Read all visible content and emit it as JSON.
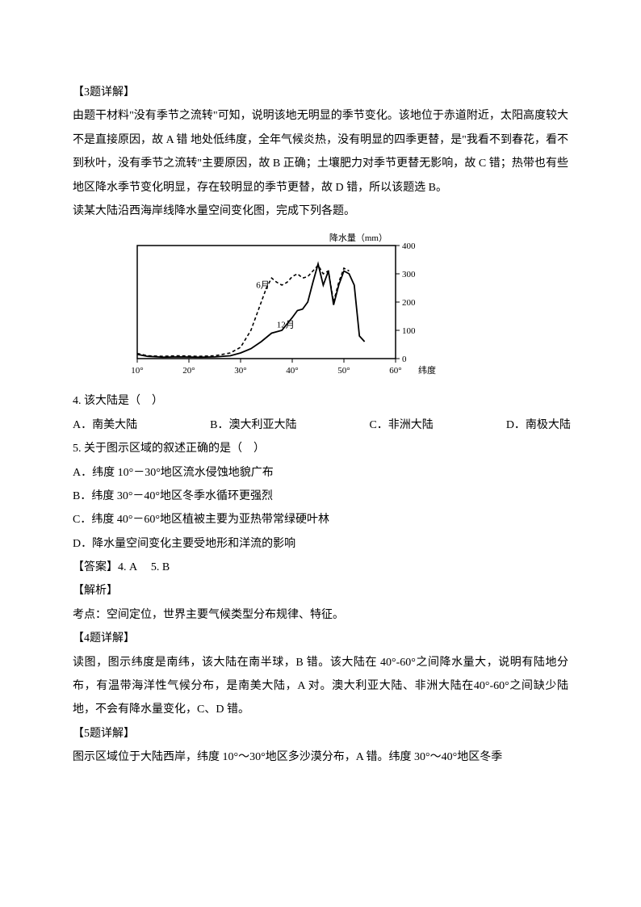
{
  "q3": {
    "heading": "【3题详解】",
    "body": "由题干材料\"没有季节之流转\"可知，说明该地无明显的季节变化。该地位于赤道附近，太阳高度较大不是直接原因，故 A 错  地处低纬度，全年气候炎热，没有明显的四季更替，是\"我看不到春花，看不到秋叶，没有季节之流转\"主要原因，故 B 正确；土壤肥力对季节更替无影响，故 C 错；热带也有些地区降水季节变化明显，存在较明显的季节更替，故 D 错，所以该题选 B。",
    "prompt": "读某大陆沿西海岸线降水量空间变化图，完成下列各题。"
  },
  "chart": {
    "title": "降水量（mm）",
    "xlabel": "纬度",
    "x_ticks": [
      "10°",
      "20°",
      "30°",
      "40°",
      "50°",
      "60°"
    ],
    "y_ticks": [
      "0",
      "100",
      "200",
      "300",
      "400"
    ],
    "ylim": [
      0,
      400
    ],
    "xlim": [
      10,
      60
    ],
    "line_color": "#000000",
    "dash_color": "#000000",
    "background_color": "#ffffff",
    "label_fontsize": 11,
    "series_labels": {
      "dashed": "6月",
      "solid": "12月"
    },
    "series_dashed": [
      [
        10,
        18
      ],
      [
        12,
        10
      ],
      [
        15,
        8
      ],
      [
        18,
        10
      ],
      [
        22,
        8
      ],
      [
        25,
        10
      ],
      [
        28,
        20
      ],
      [
        30,
        40
      ],
      [
        32,
        100
      ],
      [
        34,
        200
      ],
      [
        35,
        250
      ],
      [
        36,
        285
      ],
      [
        37,
        270
      ],
      [
        38,
        260
      ],
      [
        39,
        270
      ],
      [
        40,
        290
      ],
      [
        41,
        300
      ],
      [
        42,
        285
      ],
      [
        43,
        290
      ],
      [
        45,
        330
      ],
      [
        46,
        300
      ],
      [
        47,
        310
      ],
      [
        48,
        200
      ],
      [
        49,
        270
      ],
      [
        50,
        320
      ],
      [
        51,
        310
      ]
    ],
    "series_solid": [
      [
        10,
        15
      ],
      [
        12,
        8
      ],
      [
        15,
        5
      ],
      [
        18,
        6
      ],
      [
        22,
        5
      ],
      [
        25,
        6
      ],
      [
        28,
        10
      ],
      [
        30,
        20
      ],
      [
        32,
        35
      ],
      [
        34,
        60
      ],
      [
        36,
        90
      ],
      [
        38,
        100
      ],
      [
        40,
        145
      ],
      [
        41,
        170
      ],
      [
        42,
        175
      ],
      [
        43,
        200
      ],
      [
        44,
        270
      ],
      [
        45,
        335
      ],
      [
        46,
        260
      ],
      [
        47,
        310
      ],
      [
        48,
        190
      ],
      [
        49,
        260
      ],
      [
        50,
        310
      ],
      [
        51,
        300
      ],
      [
        52,
        260
      ],
      [
        53,
        80
      ],
      [
        54,
        60
      ]
    ]
  },
  "q4": {
    "stem": "4. 该大陆是（　）",
    "opts": [
      "A．南美大陆",
      "B．澳大利亚大陆",
      "C．非洲大陆",
      "D．南极大陆"
    ]
  },
  "q5": {
    "stem": "5. 关于图示区域的叙述正确的是（　）",
    "opts": [
      "A．纬度 10°－30°地区流水侵蚀地貌广布",
      "B．纬度 30°－40°地区冬季水循环更强烈",
      "C．纬度 40°－60°地区植被主要为亚热带常绿硬叶林",
      "D．降水量空间变化主要受地形和洋流的影响"
    ]
  },
  "answer": "【答案】4. A　 5. B",
  "jiexi": "【解析】",
  "kaodian": "考点：空间定位，世界主要气候类型分布规律、特征。",
  "q4_detail": {
    "heading": "【4题详解】",
    "body": "读图，图示纬度是南纬，该大陆在南半球，B 错。该大陆在 40°-60°之间降水量大，说明有陆地分布，有温带海洋性气候分布，是南美大陆，A 对。澳大利亚大陆、非洲大陆在40°-60°之间缺少陆地，不会有降水量变化，C、D 错。"
  },
  "q5_detail": {
    "heading": "【5题详解】",
    "body": "图示区域位于大陆西岸，纬度 10°～30°地区多沙漠分布，A 错。纬度 30°～40°地区冬季"
  }
}
